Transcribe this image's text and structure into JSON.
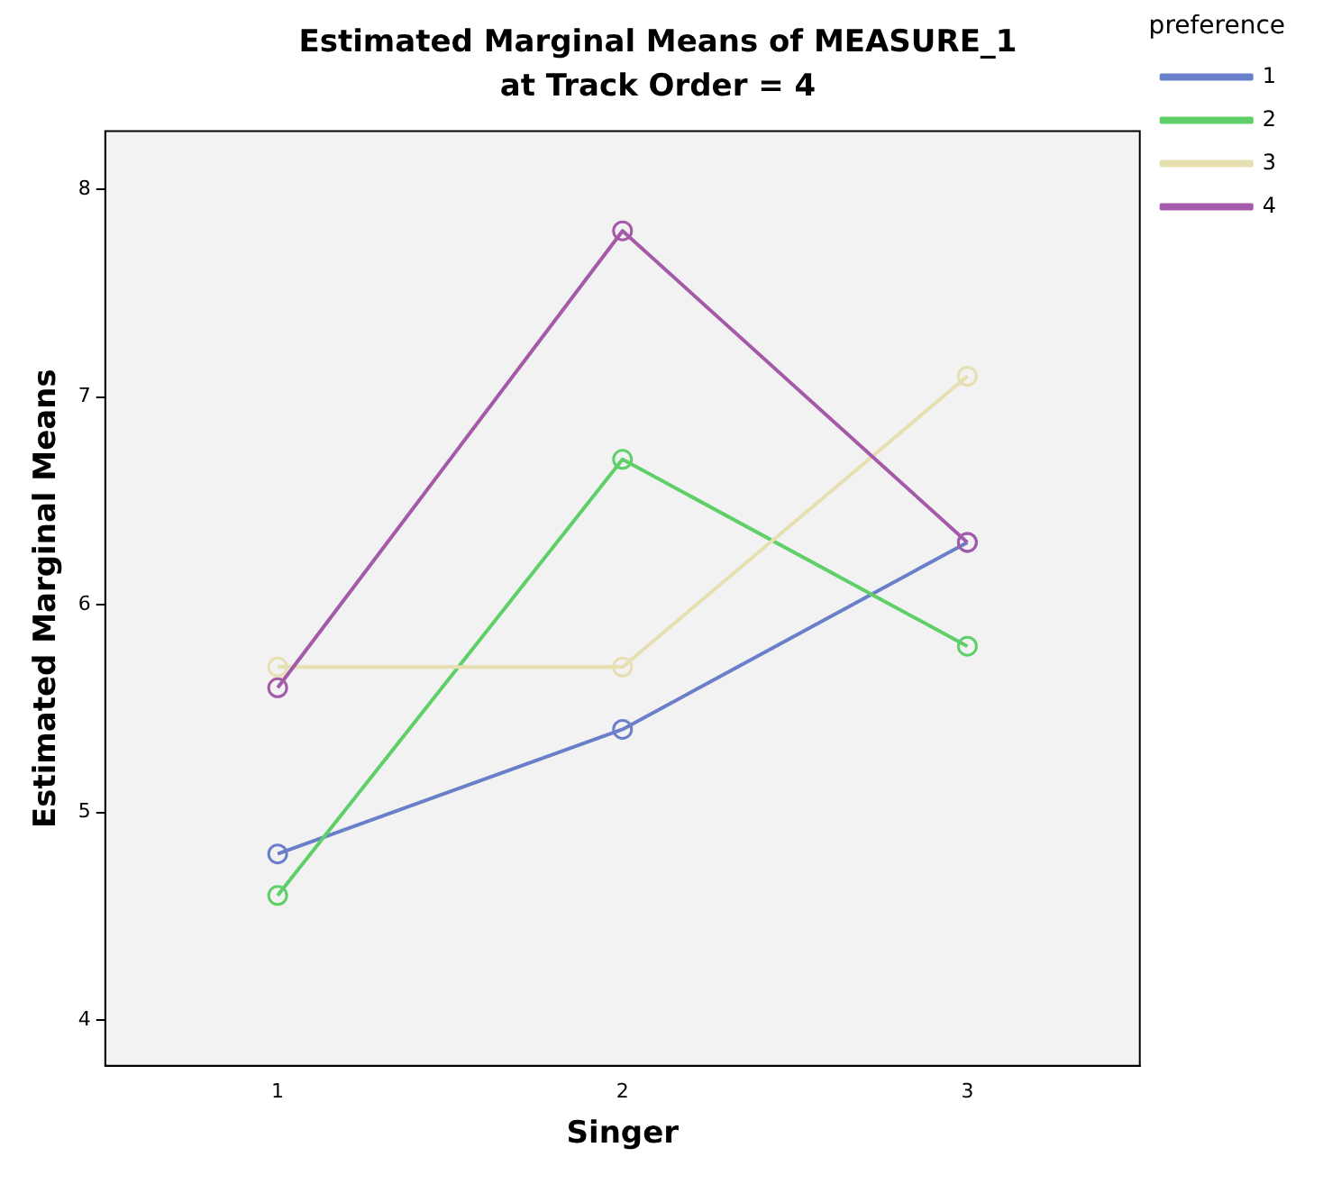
{
  "chart_data": {
    "type": "line",
    "title": "Estimated Marginal Means of MEASURE_1",
    "subtitle": "at Track Order = 4",
    "xlabel": "Singer",
    "ylabel": "Estimated Marginal Means",
    "legend_title": "preference",
    "categories": [
      "1",
      "2",
      "3"
    ],
    "series": [
      {
        "name": "1",
        "color": "#6a7fc9",
        "values": [
          4.8,
          5.4,
          6.3
        ]
      },
      {
        "name": "2",
        "color": "#5fcf6a",
        "values": [
          4.6,
          6.7,
          5.8
        ]
      },
      {
        "name": "3",
        "color": "#e6dfb0",
        "values": [
          5.7,
          5.7,
          7.1
        ]
      },
      {
        "name": "4",
        "color": "#a45aa8",
        "values": [
          5.6,
          7.8,
          6.3
        ]
      }
    ],
    "ylim": [
      3.78,
      8.28
    ],
    "yticks": [
      4,
      5,
      6,
      7,
      8
    ],
    "grid": false,
    "legend": "top right",
    "marker": "circle",
    "line_style": "solid"
  }
}
